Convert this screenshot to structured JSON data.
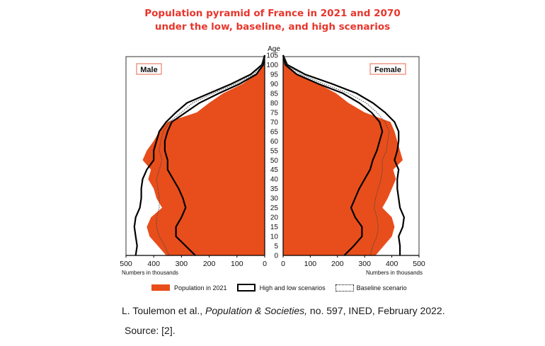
{
  "title": {
    "line1": "Population pyramid of France in 2021 and 2070",
    "line2": "under the low, baseline, and high scenarios"
  },
  "caption": {
    "author": "L. Toulemon et al., ",
    "journal": "Population & Societies,",
    "rest": " no. 597, INED, February 2022.",
    "source": "Source: [2]."
  },
  "legend": {
    "fill_label": "Population in 2021",
    "solid_label": "High and low scenarios",
    "dotted_label": "Baseline scenario"
  },
  "colors": {
    "title": "#e8352b",
    "fill": "#e84e1b",
    "panel_label_border": "#e8826a"
  },
  "chart_data": {
    "type": "area",
    "title": "Population pyramid of France in 2021 and 2070 under the low, baseline, and high scenarios",
    "ylabel": "Age",
    "xlabel": "Numbers in thousands",
    "ages": [
      0,
      5,
      10,
      15,
      20,
      25,
      30,
      35,
      40,
      45,
      50,
      55,
      60,
      65,
      70,
      75,
      80,
      85,
      90,
      95,
      100,
      105
    ],
    "y_ticks": [
      0,
      5,
      10,
      15,
      20,
      25,
      30,
      35,
      40,
      45,
      50,
      55,
      60,
      65,
      70,
      75,
      80,
      85,
      90,
      95,
      100,
      105
    ],
    "x_ticks_left": [
      500,
      400,
      300,
      200,
      100,
      0
    ],
    "x_ticks_right": [
      0,
      100,
      200,
      300,
      400,
      500
    ],
    "xlim": [
      0,
      500
    ],
    "ylim": [
      0,
      105
    ],
    "male": {
      "label": "Male",
      "population_2021": [
        355,
        385,
        415,
        425,
        410,
        370,
        390,
        400,
        420,
        410,
        440,
        425,
        400,
        380,
        350,
        245,
        200,
        150,
        80,
        30,
        5,
        0
      ],
      "high_scenario_2070": [
        465,
        460,
        465,
        470,
        465,
        450,
        445,
        445,
        440,
        425,
        400,
        400,
        390,
        380,
        355,
        320,
        280,
        200,
        120,
        50,
        10,
        0
      ],
      "baseline_2070": [
        345,
        360,
        380,
        390,
        390,
        380,
        380,
        385,
        390,
        380,
        370,
        380,
        375,
        365,
        345,
        300,
        260,
        185,
        105,
        40,
        8,
        0
      ],
      "low_scenario_2070": [
        250,
        285,
        320,
        320,
        300,
        285,
        295,
        310,
        330,
        350,
        350,
        360,
        360,
        350,
        335,
        285,
        235,
        165,
        90,
        30,
        5,
        0
      ]
    },
    "female": {
      "label": "Female",
      "population_2021": [
        340,
        370,
        400,
        410,
        400,
        365,
        385,
        400,
        415,
        405,
        440,
        430,
        420,
        410,
        395,
        300,
        240,
        195,
        130,
        50,
        10,
        0
      ],
      "high_scenario_2070": [
        430,
        430,
        425,
        440,
        445,
        430,
        425,
        420,
        420,
        425,
        410,
        420,
        425,
        425,
        410,
        375,
        330,
        270,
        180,
        80,
        15,
        0
      ],
      "baseline_2070": [
        320,
        330,
        345,
        350,
        345,
        335,
        340,
        350,
        360,
        365,
        365,
        380,
        385,
        390,
        375,
        345,
        305,
        240,
        150,
        65,
        12,
        0
      ],
      "low_scenario_2070": [
        225,
        260,
        290,
        290,
        265,
        250,
        265,
        280,
        300,
        320,
        330,
        345,
        355,
        365,
        355,
        325,
        280,
        220,
        130,
        50,
        8,
        0
      ]
    }
  },
  "axis": {
    "age_label": "Age",
    "numbers_label_left": "Numbers in thousands",
    "numbers_label_right": "Numbers in thousands",
    "panel_left": "Male",
    "panel_right": "Female"
  }
}
